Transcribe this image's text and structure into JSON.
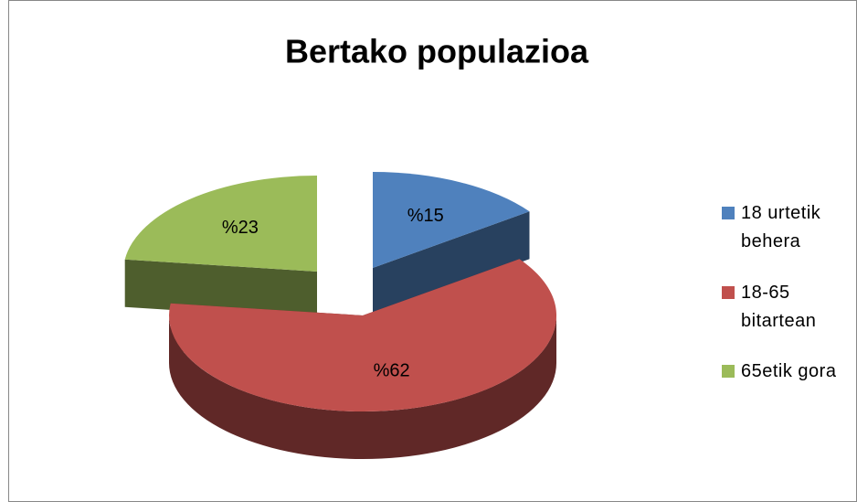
{
  "chart_data": {
    "type": "pie",
    "title": "Bertako populazioa",
    "categories": [
      "18 urtetik behera",
      "18-65 bitartean",
      "65etik gora"
    ],
    "values": [
      15,
      62,
      23
    ],
    "value_labels": [
      "%15",
      "%62",
      "%23"
    ],
    "colors": [
      "#4f81bd",
      "#c0504d",
      "#9bbb59"
    ],
    "legend": "right"
  }
}
